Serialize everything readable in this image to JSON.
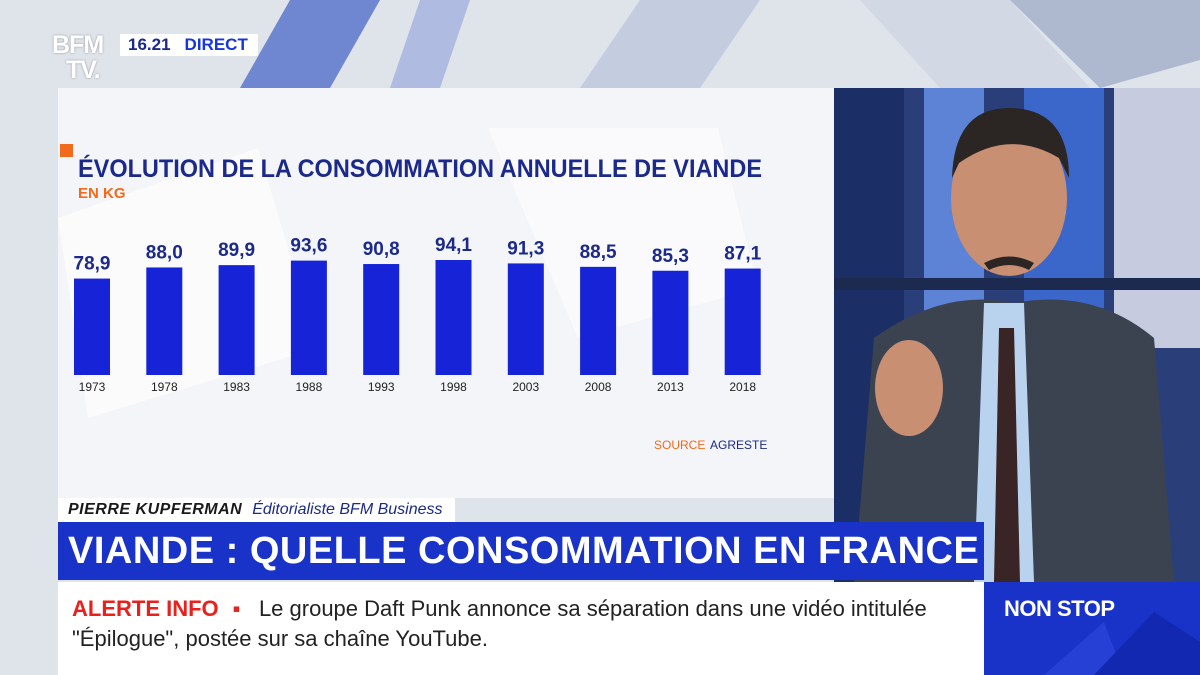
{
  "channel": {
    "logo_line1": "BFM",
    "logo_line2": "TV.",
    "time": "16.21",
    "live": "DIRECT"
  },
  "chart_data": {
    "type": "bar",
    "title": "ÉVOLUTION DE LA CONSOMMATION ANNUELLE DE VIANDE",
    "subtitle": "EN KG",
    "categories": [
      "1973",
      "1978",
      "1983",
      "1988",
      "1993",
      "1998",
      "2003",
      "2008",
      "2013",
      "2018"
    ],
    "values": [
      78.9,
      88.0,
      89.9,
      93.6,
      90.8,
      94.1,
      91.3,
      88.5,
      85.3,
      87.1
    ],
    "value_labels": [
      "78,9",
      "88,0",
      "89,9",
      "93,6",
      "90,8",
      "94,1",
      "91,3",
      "88,5",
      "85,3",
      "87,1"
    ],
    "source_label": "SOURCE",
    "source": "AGRESTE",
    "colors": {
      "bar": "#1623d6",
      "title": "#1b2a8a",
      "accent": "#f26a1b"
    }
  },
  "lower_third": {
    "name": "PIERRE KUPFERMAN",
    "role": "Éditorialiste BFM Business",
    "headline": "VIANDE : QUELLE CONSOMMATION EN FRANCE ?"
  },
  "ticker": {
    "alert": "ALERTE INFO",
    "text": "Le groupe Daft Punk annonce sa séparation dans une vidéo intitulée \"Épilogue\", postée sur sa chaîne YouTube."
  },
  "badge": {
    "label": "NON STOP"
  }
}
